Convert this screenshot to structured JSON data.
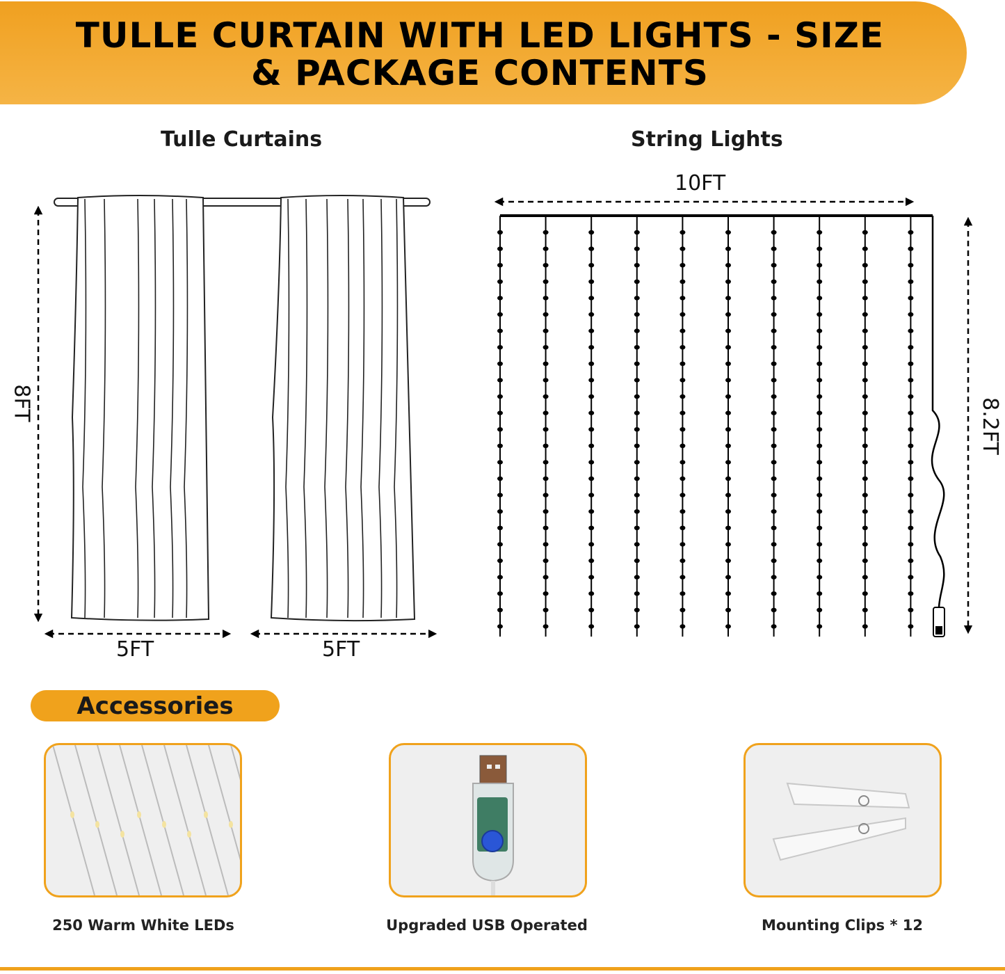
{
  "banner": {
    "line1": "TULLE CURTAIN WITH LED LIGHTS - SIZE",
    "line2": "& PACKAGE CONTENTS"
  },
  "sections": {
    "curtains_title": "Tulle Curtains",
    "lights_title": "String Lights"
  },
  "dimensions": {
    "curtain_height": "8FT",
    "curtain_width_left": "5FT",
    "curtain_width_right": "5FT",
    "lights_width": "10FT",
    "lights_height": "8.2FT"
  },
  "accessories": {
    "title": "Accessories",
    "items": [
      {
        "caption": "250 Warm White LEDs",
        "icon": "led-strands-icon"
      },
      {
        "caption": "Upgraded USB Operated",
        "icon": "usb-controller-icon"
      },
      {
        "caption": "Mounting Clips * 12",
        "icon": "clips-icon"
      }
    ]
  },
  "colors": {
    "accent": "#f0a21c",
    "banner_top": "#f0a020",
    "banner_bottom": "#f5b445",
    "card_bg": "#efefef"
  }
}
